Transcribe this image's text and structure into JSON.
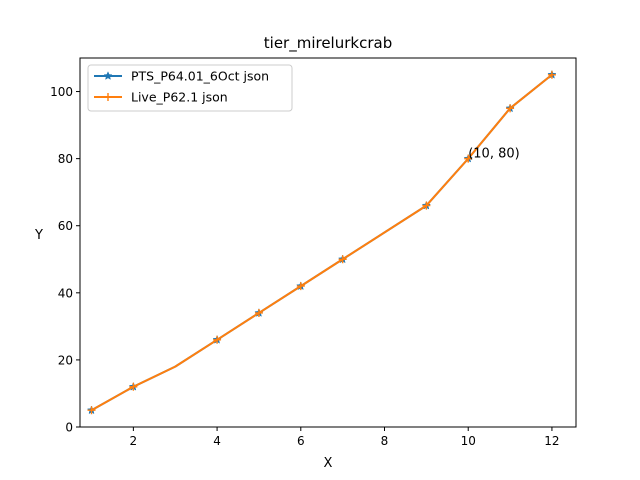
{
  "chart_data": {
    "type": "line",
    "title": "tier_mirelurkcrab",
    "xlabel": "X",
    "ylabel": "Y",
    "xlim": [
      0.725,
      12.575
    ],
    "ylim": [
      0,
      110
    ],
    "xticks": [
      2,
      4,
      6,
      8,
      10,
      12
    ],
    "yticks": [
      0,
      20,
      40,
      60,
      80,
      100
    ],
    "grid": false,
    "legend": "top-left",
    "x": [
      1,
      2,
      3,
      4,
      5,
      6,
      7,
      9,
      10,
      11,
      12
    ],
    "series": [
      {
        "name": "PTS_P64.01_6Oct json",
        "color": "#1f77b4",
        "marker": "star",
        "values": [
          5,
          12,
          18,
          26,
          34,
          42,
          50,
          66,
          80,
          95,
          105
        ]
      },
      {
        "name": "Live_P62.1 json",
        "color": "#ff7f0e",
        "marker": "plus",
        "values": [
          5,
          12,
          18,
          26,
          34,
          42,
          50,
          66,
          80,
          95,
          105
        ]
      }
    ],
    "markers_hidden_at_x": [
      3
    ],
    "annotations": [
      {
        "text": "(10, 80)",
        "x": 10,
        "y": 80
      }
    ]
  }
}
